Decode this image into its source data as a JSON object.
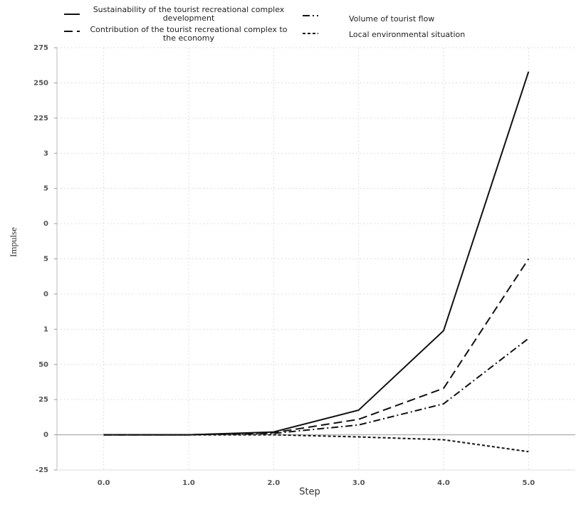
{
  "chart_data": {
    "type": "line",
    "xlabel": "Step",
    "ylabel": "Impulse",
    "x": [
      0,
      1,
      2,
      3,
      4,
      5
    ],
    "series": [
      {
        "name": "Sustainability of the tourist recreational complex development",
        "color": "#111111",
        "dash": "solid",
        "values": [
          0,
          0,
          2,
          17.5,
          74,
          258
        ]
      },
      {
        "name": "Contribution of the tourist recreational complex to the economy",
        "color": "#111111",
        "dash": "dashed",
        "values": [
          0,
          0,
          1.5,
          11,
          33,
          125
        ]
      },
      {
        "name": "Volume of tourist flow",
        "color": "#111111",
        "dash": "dashdot",
        "values": [
          0,
          0,
          1,
          7,
          22,
          68.5
        ]
      },
      {
        "name": "Local environmental situation",
        "color": "#111111",
        "dash": "dotted",
        "values": [
          0,
          0,
          0,
          -1.5,
          -3.5,
          -12
        ]
      }
    ],
    "xlim": [
      -0.55,
      5.55
    ],
    "xticks": [
      {
        "value": 0,
        "label": "0.0"
      },
      {
        "value": 1,
        "label": "1.0"
      },
      {
        "value": 2,
        "label": "2.0"
      },
      {
        "value": 3,
        "label": "3.0"
      },
      {
        "value": 4,
        "label": "4.0"
      },
      {
        "value": 5,
        "label": "5.0"
      }
    ],
    "ylim": [
      -25,
      275
    ],
    "yticks": [
      -25,
      0,
      25,
      50,
      {
        "value": 75,
        "label": "1"
      },
      {
        "value": 100,
        "label": "0"
      },
      {
        "value": 125,
        "label": "5"
      },
      {
        "value": 150,
        "label": "0"
      },
      {
        "value": 175,
        "label": "5"
      },
      {
        "value": 200,
        "label": "3"
      },
      225,
      250,
      275
    ],
    "grid": true
  }
}
